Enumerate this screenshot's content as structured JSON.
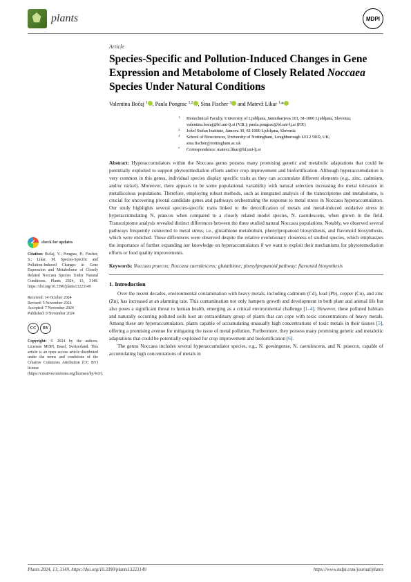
{
  "header": {
    "journal_name": "plants",
    "publisher": "MDPI"
  },
  "article_type": "Article",
  "title_html": "Species-Specific and Pollution-Induced Changes in Gene Expression and Metabolome of Closely Related <em>Noccaea</em> Species Under Natural Conditions",
  "authors_html": "Valentina Bočaj <sup>1</sup><span class='orcid'></span>, Paula Pongrac <sup>1,2</sup><span class='orcid'></span>, Sina Fischer <sup>3</sup><span class='orcid'></span> and Matevž Likar <sup>1,</sup>*<span class='orcid'></span>",
  "affiliations": [
    {
      "num": "1",
      "text": "Biotechnical Faculty, University of Ljubljana, Jamnikarjeva 101, SI-1000 Ljubljana, Slovenia; valentina.bocaj@bf.uni-lj.si (V.B.); paula.pongrac@bf.uni-lj.si (P.P.)"
    },
    {
      "num": "2",
      "text": "Jožef Stefan Institute, Jamova 39, SI-1000 Ljubljana, Slovenia"
    },
    {
      "num": "3",
      "text": "School of Biosciences, University of Nottingham, Loughborough LE12 5RD, UK; sina.fischer@nottingham.ac.uk"
    },
    {
      "num": "*",
      "text": "Correspondence: matevz.likar@bf.uni-lj.si"
    }
  ],
  "abstract_label": "Abstract:",
  "abstract": "Hyperaccumulators within the Noccaea genus possess many promising genetic and metabolic adaptations that could be potentially exploited to support phytoremediation efforts and/or crop improvement and biofortification. Although hyperaccumulation is very common in this genus, individual species display specific traits as they can accumulate different elements (e.g., zinc, cadmium, and/or nickel). Moreover, there appears to be some populational variability with natural selection increasing the metal tolerance in metallicolous populations. Therefore, employing robust methods, such as integrated analysis of the transcriptome and metabolome, is crucial for uncovering pivotal candidate genes and pathways orchestrating the response to metal stress in Noccaea hyperaccumulators. Our study highlights several species-specific traits linked to the detoxification of metals and metal-induced oxidative stress in hyperaccumulating N. praecox when compared to a closely related model species, N. caerulescens, when grown in the field. Transcriptome analysis revealed distinct differences between the three studied natural Noccaea populations. Notably, we observed several pathways frequently connected to metal stress, i.e., glutathione metabolism, phenylpropanoid biosynthesis, and flavonoid biosynthesis, which were enriched. These differences were observed despite the relative evolutionary closeness of studied species, which emphasizes the importance of further expanding our knowledge on hyperaccumulators if we want to exploit their mechanisms for phytoremediation efforts or food quality improvements.",
  "keywords_label": "Keywords:",
  "keywords": "Noccaea praecox; Noccaea caerulescens; glutathione; phenylpropanoid pathway; flavonoid biosynthesis",
  "intro_heading": "1. Introduction",
  "intro_paragraphs": [
    "Over the recent decades, environmental contamination with heavy metals, including cadmium (Cd), lead (Pb), copper (Cu), and zinc (Zn), has increased at an alarming rate. This contamination not only hampers growth and development in both plant and animal life but also poses a significant threat to human health, emerging as a critical environmental challenge [1–4]. However, these polluted habitats and naturally occurring polluted soils host an extraordinary group of plants that can cope with toxic concentrations of heavy metals. Among these are hyperaccumulators, plants capable of accumulating unusually high concentrations of toxic metals in their tissues [5], offering a promising avenue for mitigating the issue of metal pollution. Furthermore, they possess many promising genetic and metabolic adaptations that could be potentially exploited for crop improvement and biofortification [6].",
    "The genus Noccaea includes several hyperaccumulator species, e.g., N. goesingense, N. caerulescens, and N. praecox, capable of accumulating high concentrations of metals in"
  ],
  "sidebar": {
    "check_updates": "check for updates",
    "citation_label": "Citation:",
    "citation": "Bočaj, V.; Pongrac, P.; Fischer, S.; Likar, M. Species-Specific and Pollution-Induced Changes in Gene Expression and Metabolome of Closely Related Noccaea Species Under Natural Conditions. Plants 2024, 13, 3149.",
    "doi": "10.3390/plants13223149",
    "received": "Received: 14 October 2024",
    "revised": "Revised: 5 November 2024",
    "accepted": "Accepted: 7 November 2024",
    "published": "Published: 9 November 2024",
    "copyright_label": "Copyright:",
    "copyright": "© 2024 by the authors. Licensee MDPI, Basel, Switzerland. This article is an open access article distributed under the terms and conditions of the Creative Commons Attribution (CC BY) license (https://creativecommons.org/licenses/by/4.0/)."
  },
  "footer": {
    "left": "Plants 2024, 13, 3149. https://doi.org/10.3390/plants13223149",
    "right": "https://www.mdpi.com/journal/plants"
  },
  "colors": {
    "accent_green": "#5a8a3a",
    "link_blue": "#0a6aa8",
    "rule_gray": "#888888",
    "text": "#000000"
  }
}
